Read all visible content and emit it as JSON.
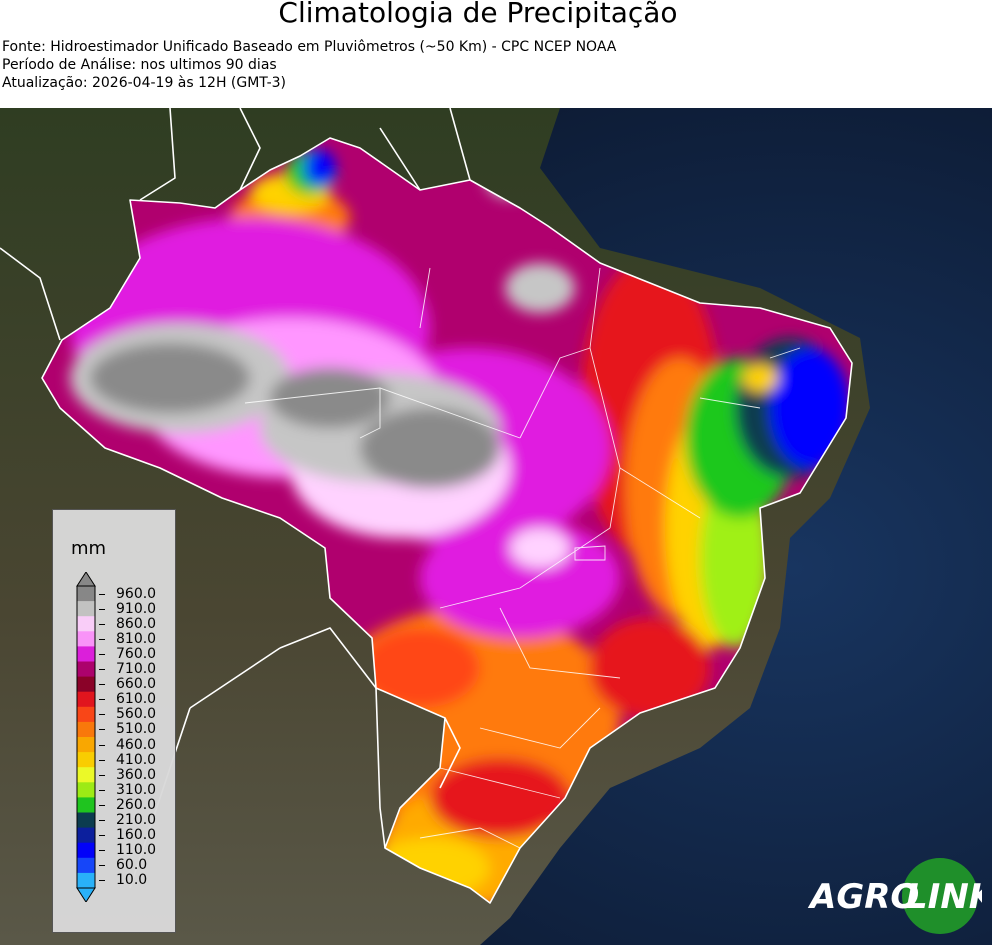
{
  "header": {
    "title": "Climatologia de Precipitação",
    "source": "Fonte: Hidroestimador Unificado Baseado em Pluviômetros (~50 Km) - CPC NCEP NOAA",
    "period": "Período de Análise: nos ultimos 90 dias",
    "updated": "Atualização: 2026-04-19 às 12H (GMT-3)"
  },
  "legend": {
    "unit": "mm",
    "ticks": [
      "960.0",
      "910.0",
      "860.0",
      "810.0",
      "760.0",
      "710.0",
      "660.0",
      "610.0",
      "560.0",
      "510.0",
      "460.0",
      "410.0",
      "360.0",
      "310.0",
      "260.0",
      "210.0",
      "160.0",
      "110.0",
      "60.0",
      "10.0"
    ],
    "colors": [
      "#8a8a8a",
      "#c6c6c6",
      "#ffd2ff",
      "#ff96ff",
      "#e01ee0",
      "#b0006e",
      "#8c0028",
      "#e6141e",
      "#ff4616",
      "#ff7a0a",
      "#ffaa00",
      "#ffd200",
      "#f0ff28",
      "#a0f014",
      "#1ec81e",
      "#0a3c50",
      "#0a1ea0",
      "#0000ff",
      "#1446ff",
      "#28b4ff"
    ]
  },
  "logo": {
    "text_left": "AGRO",
    "text_right": "LINK"
  },
  "colors": {
    "ocean": "#0c1a33",
    "land": "#3a3a28",
    "border": "#ffffff"
  }
}
